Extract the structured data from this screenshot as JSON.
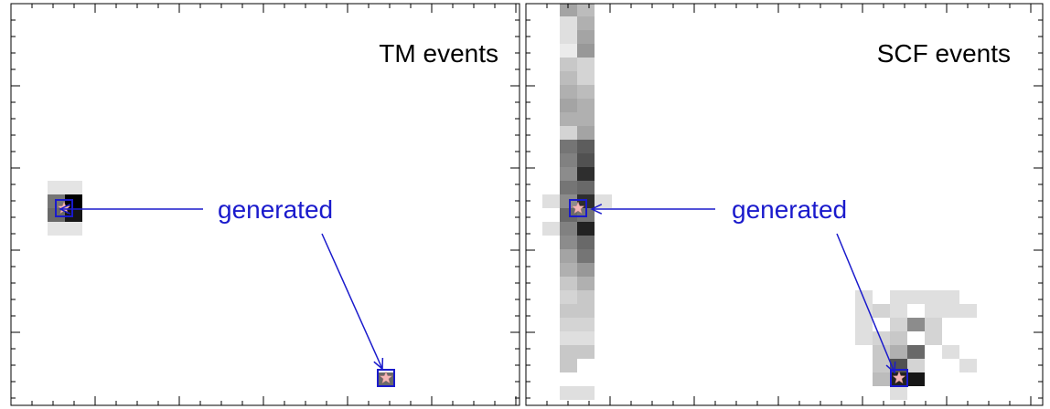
{
  "chart_data": [
    {
      "type": "heatmap",
      "title": "TM events",
      "annotation": "generated",
      "cells": [
        [
          2,
          13,
          0.08
        ],
        [
          3,
          13,
          0.08
        ],
        [
          2,
          14,
          0.55
        ],
        [
          3,
          14,
          1
        ],
        [
          2,
          15,
          0.6
        ],
        [
          3,
          15,
          0.95
        ],
        [
          2,
          16,
          0.08
        ],
        [
          3,
          16,
          0.08
        ],
        [
          21,
          27,
          0.6
        ]
      ]
    },
    {
      "type": "heatmap",
      "title": "SCF events",
      "annotation": "generated",
      "cells": [
        [
          2,
          0,
          0.35
        ],
        [
          3,
          0,
          0.25
        ],
        [
          2,
          1,
          0.1
        ],
        [
          3,
          1,
          0.3
        ],
        [
          2,
          2,
          0.1
        ],
        [
          3,
          2,
          0.35
        ],
        [
          2,
          3,
          0.05
        ],
        [
          3,
          3,
          0.4
        ],
        [
          2,
          4,
          0.2
        ],
        [
          3,
          4,
          0.15
        ],
        [
          2,
          5,
          0.25
        ],
        [
          3,
          5,
          0.15
        ],
        [
          2,
          6,
          0.3
        ],
        [
          3,
          6,
          0.25
        ],
        [
          2,
          7,
          0.35
        ],
        [
          3,
          7,
          0.3
        ],
        [
          2,
          8,
          0.3
        ],
        [
          3,
          8,
          0.3
        ],
        [
          2,
          9,
          0.15
        ],
        [
          3,
          9,
          0.35
        ],
        [
          2,
          10,
          0.55
        ],
        [
          3,
          10,
          0.65
        ],
        [
          2,
          11,
          0.5
        ],
        [
          3,
          11,
          0.7
        ],
        [
          2,
          12,
          0.45
        ],
        [
          3,
          12,
          0.85
        ],
        [
          2,
          13,
          0.55
        ],
        [
          3,
          13,
          0.6
        ],
        [
          1,
          14,
          0.1
        ],
        [
          2,
          14,
          0.45
        ],
        [
          3,
          14,
          0.85
        ],
        [
          4,
          14,
          0.1
        ],
        [
          2,
          15,
          0.6
        ],
        [
          3,
          15,
          0.55
        ],
        [
          1,
          16,
          0.1
        ],
        [
          2,
          16,
          0.5
        ],
        [
          3,
          16,
          0.9
        ],
        [
          2,
          17,
          0.45
        ],
        [
          3,
          17,
          0.6
        ],
        [
          2,
          18,
          0.35
        ],
        [
          3,
          18,
          0.55
        ],
        [
          2,
          19,
          0.3
        ],
        [
          3,
          19,
          0.4
        ],
        [
          2,
          20,
          0.2
        ],
        [
          3,
          20,
          0.3
        ],
        [
          2,
          21,
          0.15
        ],
        [
          3,
          21,
          0.2
        ],
        [
          2,
          22,
          0.2
        ],
        [
          3,
          22,
          0.2
        ],
        [
          2,
          23,
          0.15
        ],
        [
          3,
          23,
          0.15
        ],
        [
          2,
          24,
          0.1
        ],
        [
          3,
          24,
          0.1
        ],
        [
          2,
          25,
          0.2
        ],
        [
          3,
          25,
          0.2
        ],
        [
          2,
          26,
          0.2
        ],
        [
          2,
          28,
          0.1
        ],
        [
          3,
          28,
          0.1
        ],
        [
          19,
          21,
          0.1
        ],
        [
          21,
          21,
          0.1
        ],
        [
          22,
          21,
          0.1
        ],
        [
          23,
          21,
          0.1
        ],
        [
          24,
          21,
          0.1
        ],
        [
          19,
          22,
          0.1
        ],
        [
          20,
          22,
          0.15
        ],
        [
          21,
          22,
          0.1
        ],
        [
          23,
          22,
          0.1
        ],
        [
          24,
          22,
          0.1
        ],
        [
          25,
          22,
          0.1
        ],
        [
          19,
          23,
          0.1
        ],
        [
          21,
          23,
          0.15
        ],
        [
          22,
          23,
          0.45
        ],
        [
          23,
          23,
          0.15
        ],
        [
          19,
          24,
          0.1
        ],
        [
          20,
          24,
          0.15
        ],
        [
          21,
          24,
          0.2
        ],
        [
          23,
          24,
          0.15
        ],
        [
          20,
          25,
          0.2
        ],
        [
          21,
          25,
          0.3
        ],
        [
          22,
          25,
          0.6
        ],
        [
          24,
          25,
          0.1
        ],
        [
          20,
          26,
          0.2
        ],
        [
          21,
          26,
          0.7
        ],
        [
          22,
          26,
          0.15
        ],
        [
          25,
          26,
          0.1
        ],
        [
          20,
          27,
          0.25
        ],
        [
          21,
          27,
          0.9
        ],
        [
          22,
          27,
          0.95
        ],
        [
          21,
          28,
          0.1
        ]
      ]
    }
  ]
}
